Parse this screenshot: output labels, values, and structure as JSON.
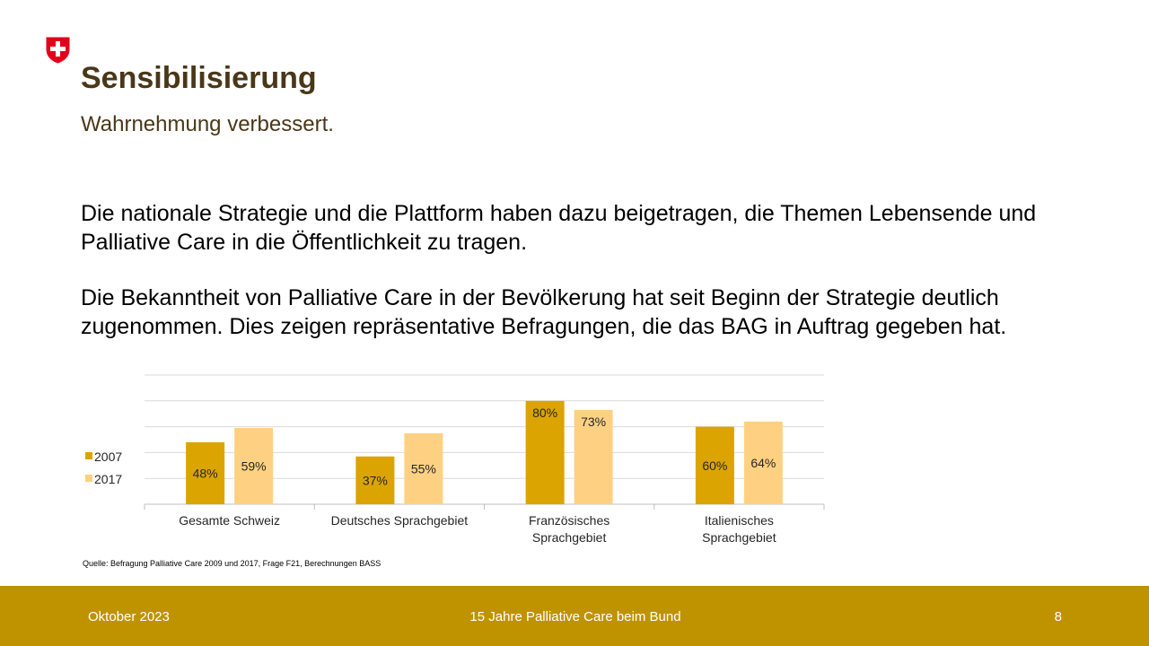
{
  "slide": {
    "title": "Sensibilisierung",
    "subtitle": "Wahrnehmung verbessert.",
    "paragraph_1": "Die nationale Strategie und die Plattform haben dazu beigetragen, die Themen Lebensende und Palliative Care in die Öffentlichkeit zu tragen.",
    "paragraph_2": "Die Bekanntheit von Palliative Care in der Bevölkerung hat seit Beginn der Strategie deutlich zugenommen. Dies zeigen repräsentative Befragungen, die das BAG in Auftrag gegeben hat.",
    "source": "Quelle: Befragung Palliative Care 2009 und 2017, Frage F21, Berechnungen BASS"
  },
  "footer": {
    "date": "Oktober 2023",
    "center": "15 Jahre Palliative Care beim Bund",
    "page_number": "8"
  },
  "icons": {
    "logo": "swiss-coat-of-arms-icon"
  },
  "colors": {
    "title": "#4a3718",
    "footer_bg": "#bf9300",
    "series_2007": "#dca400",
    "series_2017": "#fed182",
    "logo_red": "#e3001b"
  },
  "chart_data": {
    "type": "bar",
    "categories": [
      "Gesamte Schweiz",
      "Deutsches Sprachgebiet",
      "Französisches Sprachgebiet",
      "Italienisches Sprachgebiet"
    ],
    "series": [
      {
        "name": "2007",
        "values": [
          48,
          37,
          80,
          60
        ],
        "labels": [
          "48%",
          "37%",
          "80%",
          "60%"
        ]
      },
      {
        "name": "2017",
        "values": [
          59,
          55,
          73,
          64
        ],
        "labels": [
          "59%",
          "55%",
          "73%",
          "64%"
        ]
      }
    ],
    "ylim": [
      0,
      100
    ],
    "grid": true,
    "legend": "left",
    "data_labels": "inside bars"
  }
}
